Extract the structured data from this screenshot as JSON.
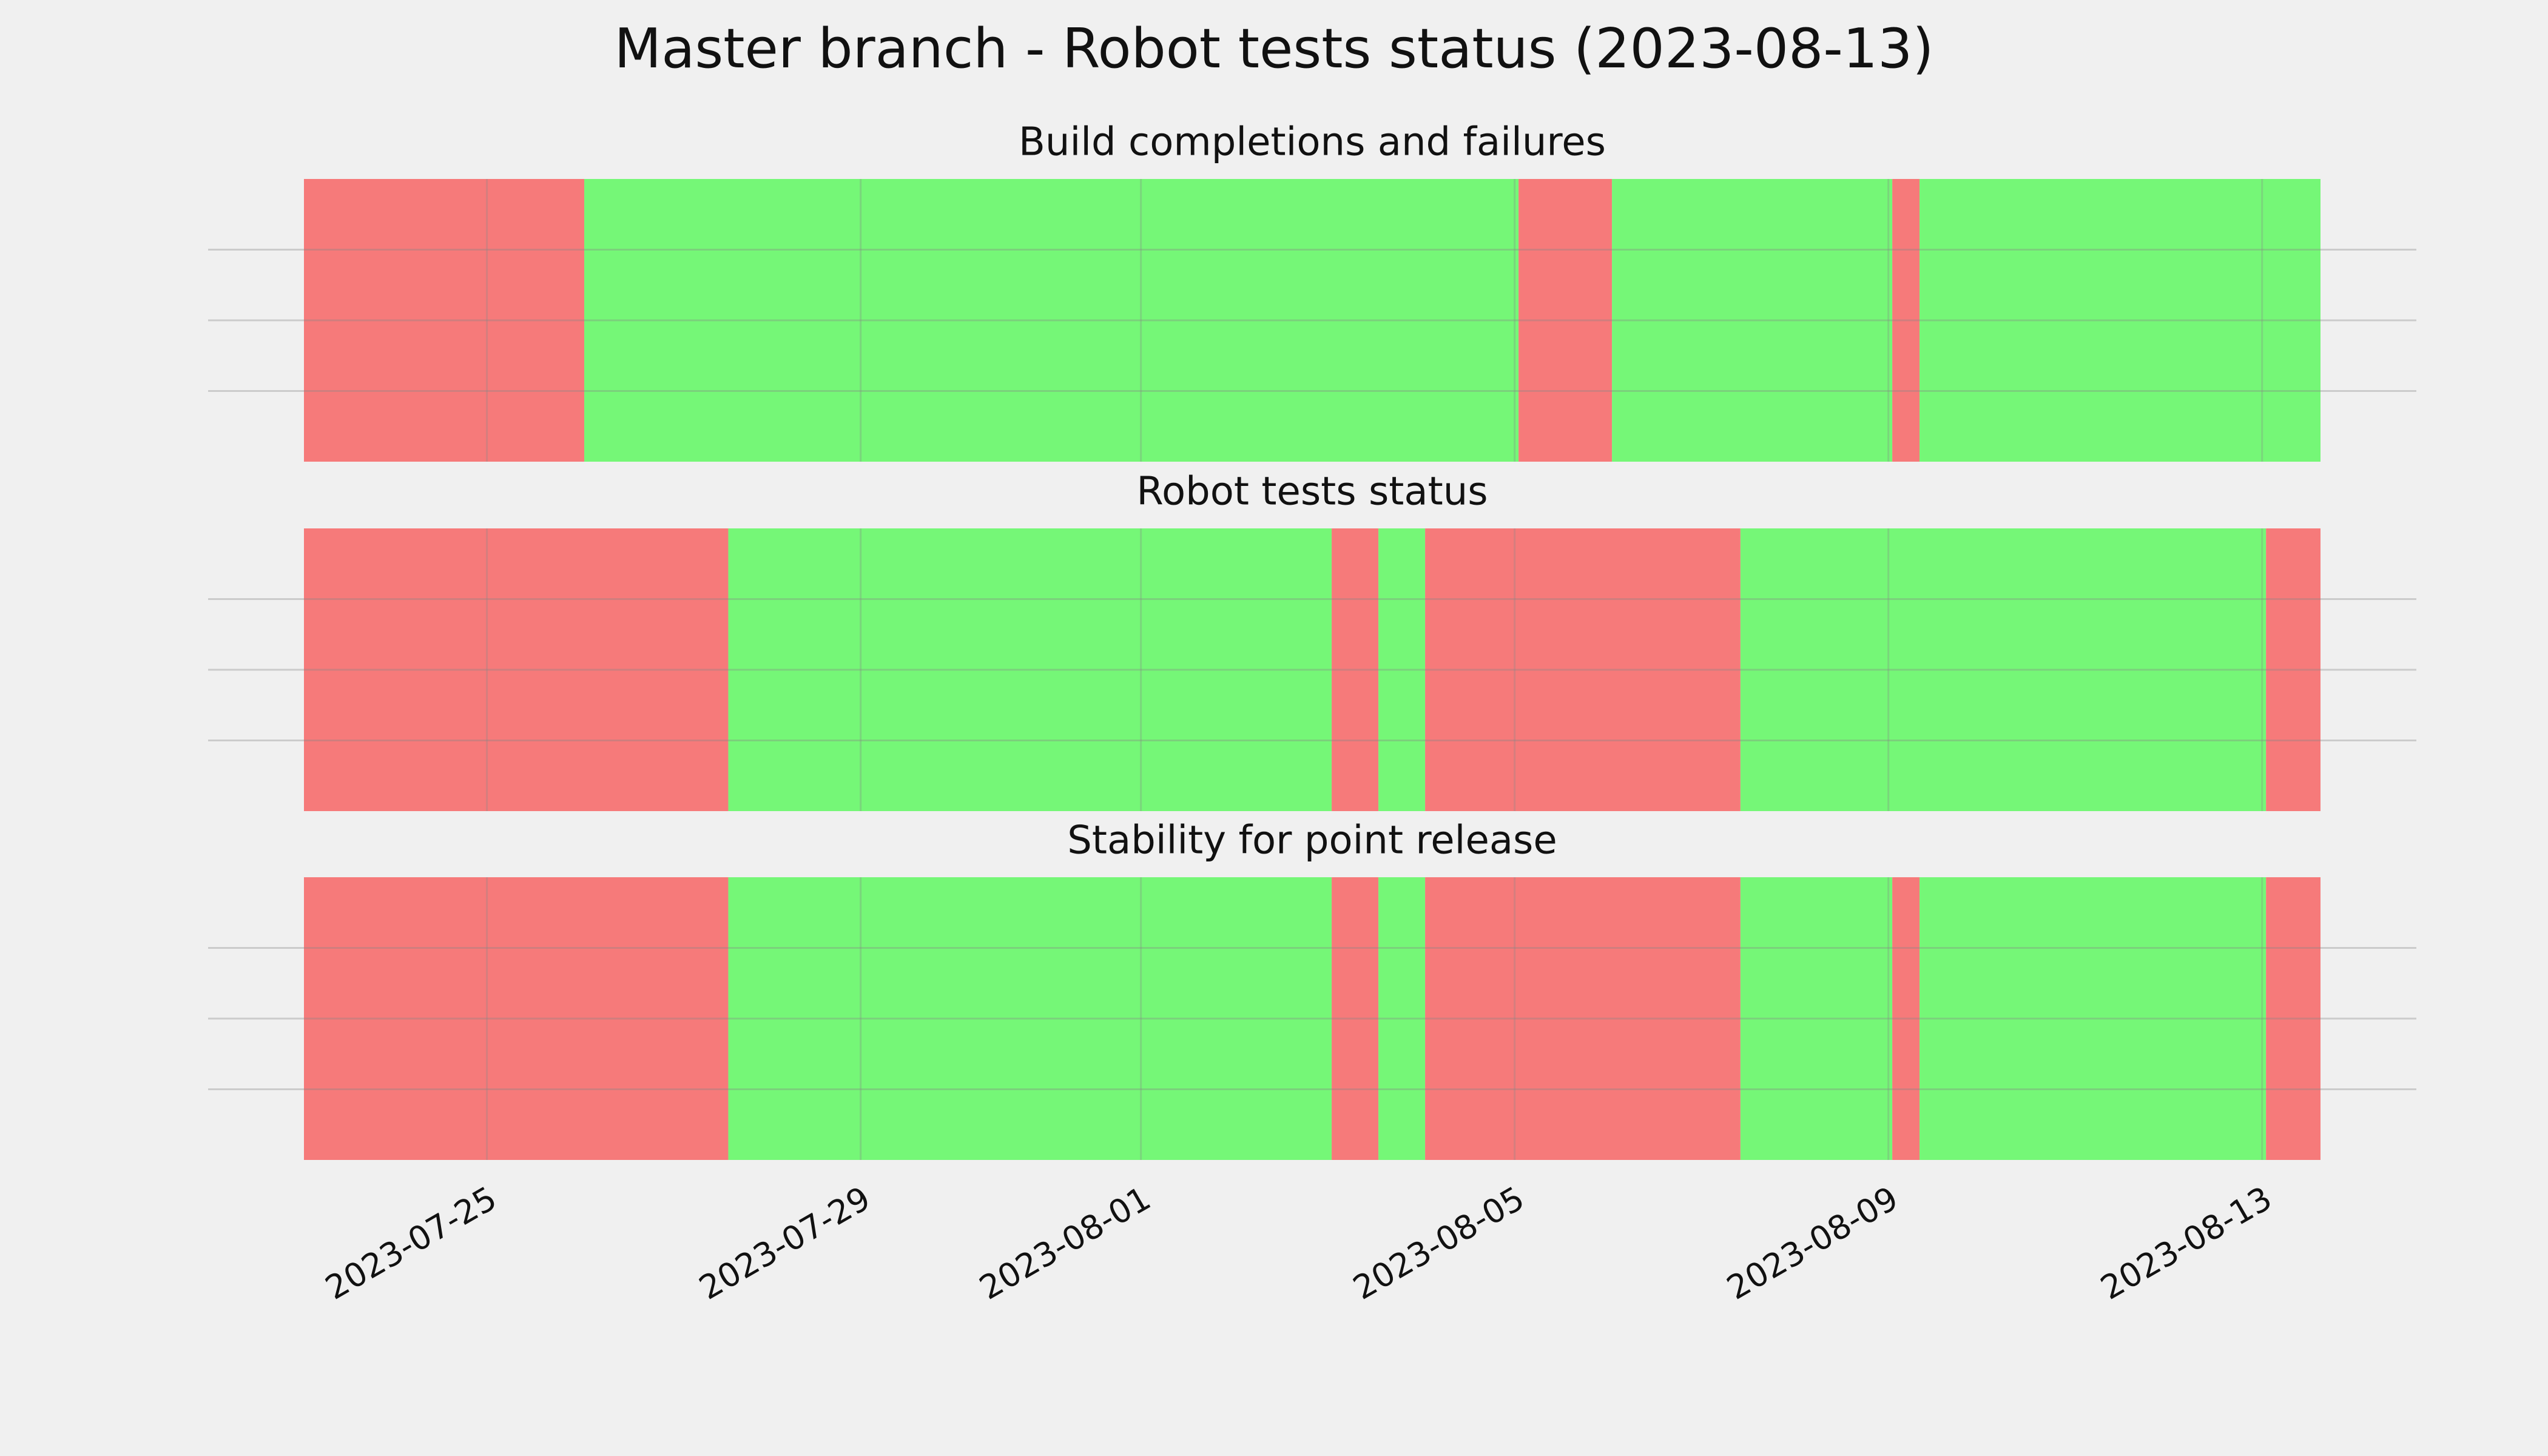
{
  "title": "Master branch - Robot tests status (2023-08-13)",
  "chart_data": [
    {
      "type": "timeline",
      "title": "Build completions and failures",
      "x": [
        "2023-07-23T01:00",
        "2023-07-26T01:00",
        "2023-08-05T01:00",
        "2023-08-06T01:00",
        "2023-08-09T01:00",
        "2023-08-09T08:00",
        "2023-08-13T15:00"
      ],
      "colors": [
        "#f67a7a",
        "#75f777",
        "#f67a7a",
        "#75f777",
        "#f67a7a",
        "#75f777"
      ],
      "xlim": [
        "2023-07-23T01:00",
        "2023-08-13T15:00"
      ],
      "xticks": [
        "2023-07-25",
        "2023-07-29",
        "2023-08-01",
        "2023-08-05",
        "2023-08-09",
        "2023-08-13"
      ],
      "grid": true
    },
    {
      "type": "timeline",
      "title": "Robot tests status",
      "x": [
        "2023-07-23T01:00",
        "2023-07-27T14:00",
        "2023-08-03T01:00",
        "2023-08-03T13:00",
        "2023-08-04T01:00",
        "2023-08-07T10:00",
        "2023-08-13T01:00",
        "2023-08-13T15:00"
      ],
      "colors": [
        "#f67a7a",
        "#75f777",
        "#f67a7a",
        "#75f777",
        "#f67a7a",
        "#75f777",
        "#f67a7a"
      ],
      "xlim": [
        "2023-07-23T01:00",
        "2023-08-13T15:00"
      ],
      "xticks": [
        "2023-07-25",
        "2023-07-29",
        "2023-08-01",
        "2023-08-05",
        "2023-08-09",
        "2023-08-13"
      ],
      "grid": true
    },
    {
      "type": "timeline",
      "title": "Stability for point release",
      "x": [
        "2023-07-23T01:00",
        "2023-07-27T14:00",
        "2023-08-03T01:00",
        "2023-08-03T13:00",
        "2023-08-04T01:00",
        "2023-08-07T10:00",
        "2023-08-09T01:00",
        "2023-08-09T08:00",
        "2023-08-13T01:00",
        "2023-08-13T15:00"
      ],
      "colors": [
        "#f67a7a",
        "#75f777",
        "#f67a7a",
        "#75f777",
        "#f67a7a",
        "#75f777",
        "#f67a7a",
        "#75f777",
        "#f67a7a"
      ],
      "xlim": [
        "2023-07-23T01:00",
        "2023-08-13T15:00"
      ],
      "xticks": [
        "2023-07-25",
        "2023-07-29",
        "2023-08-01",
        "2023-08-05",
        "2023-08-09",
        "2023-08-13"
      ],
      "grid": true,
      "show_xtick_labels": true
    }
  ]
}
